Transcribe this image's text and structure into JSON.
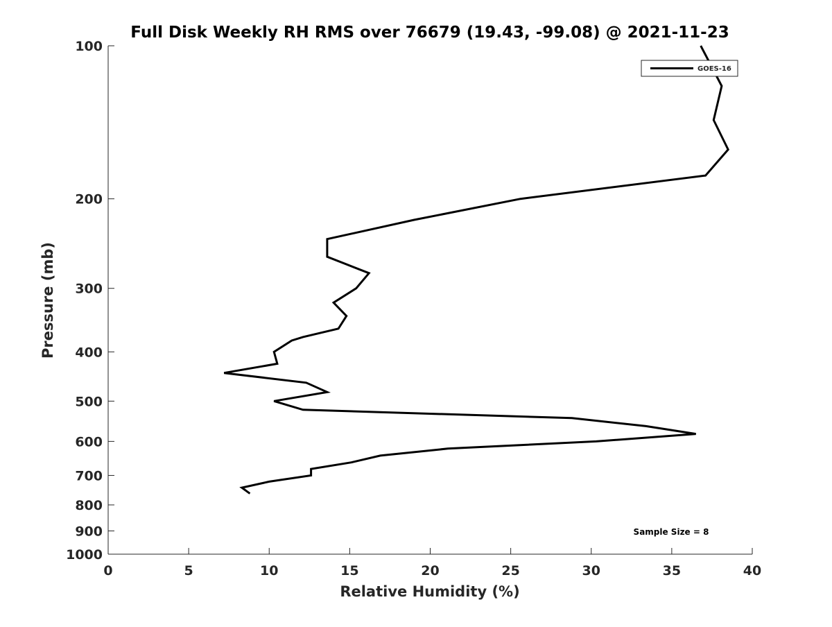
{
  "chart_data": {
    "type": "line",
    "title": "Full Disk Weekly RH RMS over 76679 (19.43, -99.08) @ 2021-11-23",
    "xlabel": "Relative Humidity (%)",
    "ylabel": "Pressure (mb)",
    "xlim": [
      0,
      40
    ],
    "ylim": [
      100,
      1000
    ],
    "yscale": "log",
    "yreversed": true,
    "xticks": [
      "0",
      "5",
      "10",
      "15",
      "20",
      "25",
      "30",
      "35",
      "40"
    ],
    "yticks": [
      "100",
      "200",
      "300",
      "400",
      "500",
      "600",
      "700",
      "800",
      "900",
      "1000"
    ],
    "legend": {
      "placement": "top-right",
      "entries": [
        "GOES-16"
      ]
    },
    "annotation": "Sample Size = 8",
    "series": [
      {
        "name": "GOES-16",
        "color": "#000000",
        "x": [
          36.8,
          38.1,
          37.6,
          38.5,
          37.1,
          25.6,
          19.0,
          13.6,
          13.6,
          16.2,
          15.4,
          14.0,
          14.8,
          14.3,
          12.1,
          11.4,
          10.3,
          10.5,
          7.2,
          12.3,
          13.6,
          10.3,
          12.1,
          28.8,
          33.4,
          36.5,
          30.3,
          21.1,
          16.9,
          15.1,
          12.6,
          12.6,
          10.0,
          8.3,
          8.8
        ],
        "y": [
          100,
          120,
          140,
          160,
          180,
          200,
          220,
          240,
          260,
          280,
          300,
          320,
          340,
          360,
          374,
          380,
          400,
          422,
          440,
          460,
          480,
          500,
          520,
          540,
          560,
          580,
          600,
          620,
          640,
          660,
          680,
          700,
          720,
          740,
          760
        ]
      }
    ]
  }
}
